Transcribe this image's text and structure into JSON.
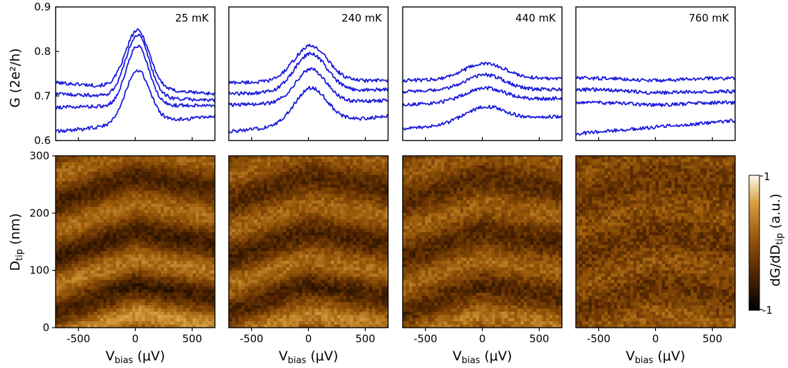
{
  "chart_data": {
    "type": "line",
    "panels": [
      {
        "temperature_label": "25 mK",
        "traces": [
          {
            "baseline": 0.73,
            "peak_height": 0.13,
            "peak_width": 150,
            "right_level": 0.705
          },
          {
            "baseline": 0.705,
            "peak_height": 0.14,
            "peak_width": 145,
            "right_level": 0.69
          },
          {
            "baseline": 0.675,
            "peak_height": 0.135,
            "peak_width": 140,
            "right_level": 0.68
          },
          {
            "baseline": 0.62,
            "peak_height": 0.12,
            "peak_width": 150,
            "right_level": 0.655
          }
        ]
      },
      {
        "temperature_label": "240 mK",
        "traces": [
          {
            "baseline": 0.73,
            "peak_height": 0.08,
            "peak_width": 210,
            "right_level": 0.735
          },
          {
            "baseline": 0.705,
            "peak_height": 0.085,
            "peak_width": 200,
            "right_level": 0.715
          },
          {
            "baseline": 0.68,
            "peak_height": 0.075,
            "peak_width": 190,
            "right_level": 0.69
          },
          {
            "baseline": 0.62,
            "peak_height": 0.08,
            "peak_width": 200,
            "right_level": 0.655
          }
        ]
      },
      {
        "temperature_label": "440 mK",
        "traces": [
          {
            "baseline": 0.735,
            "peak_height": 0.035,
            "peak_width": 260,
            "right_level": 0.74
          },
          {
            "baseline": 0.71,
            "peak_height": 0.035,
            "peak_width": 250,
            "right_level": 0.715
          },
          {
            "baseline": 0.68,
            "peak_height": 0.03,
            "peak_width": 250,
            "right_level": 0.695
          },
          {
            "baseline": 0.625,
            "peak_height": 0.035,
            "peak_width": 260,
            "right_level": 0.655
          }
        ]
      },
      {
        "temperature_label": "760 mK",
        "traces": [
          {
            "baseline": 0.74,
            "peak_height": -0.005,
            "peak_width": 300,
            "right_level": 0.74
          },
          {
            "baseline": 0.715,
            "peak_height": -0.005,
            "peak_width": 300,
            "right_level": 0.71
          },
          {
            "baseline": 0.685,
            "peak_height": -0.005,
            "peak_width": 300,
            "right_level": 0.685
          },
          {
            "baseline": 0.615,
            "peak_height": 0.0,
            "peak_width": 300,
            "right_level": 0.645
          }
        ]
      }
    ],
    "map_contrast": [
      1.0,
      0.85,
      0.7,
      0.35
    ],
    "top_axes": {
      "ylabel": "G (2e²/h)",
      "ylim": [
        0.6,
        0.9
      ],
      "yticks": [
        "0.6",
        "0.7",
        "0.8",
        "0.9"
      ],
      "xlim": [
        -700,
        700
      ]
    },
    "bottom_axes": {
      "ylabel_main": "D",
      "ylabel_sub": "tip",
      "ylabel_unit": " (nm)",
      "ylim": [
        0,
        300
      ],
      "yticks": [
        "0",
        "100",
        "200",
        "300"
      ],
      "xlim": [
        -700,
        700
      ],
      "xticks": [
        "-500",
        "0",
        "500"
      ],
      "xlabel_main": "V",
      "xlabel_sub": "bias",
      "xlabel_unit": " (μV)"
    },
    "colorbar": {
      "label_main": "dG/dD",
      "label_sub": "tip",
      "label_unit": " (a.u.)",
      "max_label": "1",
      "min_label": "-1",
      "colors": [
        "#000000",
        "#5a2a00",
        "#9a5a0a",
        "#d8a040",
        "#fffbee"
      ]
    }
  }
}
